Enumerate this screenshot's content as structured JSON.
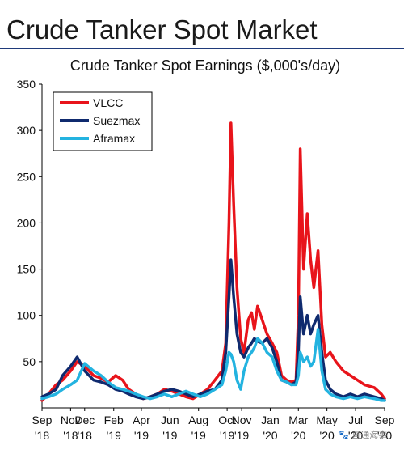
{
  "page": {
    "slide_title": "Crude Tanker Spot Market",
    "watermark": "🐾 直通海事"
  },
  "colors": {
    "VLCC": "#e8141b",
    "Suezmax": "#0f2a6e",
    "Aframax": "#23b3e0",
    "title_rule": "#1f3a7a"
  },
  "chart_data": {
    "type": "line",
    "title": "Crude Tanker Spot Earnings ($,000's/day)",
    "xlabel": "",
    "ylabel": "",
    "ylim": [
      0,
      350
    ],
    "yticks": [
      50,
      100,
      150,
      200,
      250,
      300,
      350
    ],
    "xlim": [
      "2018-09-01",
      "2020-09-01"
    ],
    "xticks": [
      {
        "x": "2018-09-01",
        "line1": "Sep",
        "line2": "'18"
      },
      {
        "x": "2018-11-01",
        "line1": "Nov",
        "line2": "'18"
      },
      {
        "x": "2018-12-01",
        "line1": "Dec",
        "line2": "'18"
      },
      {
        "x": "2019-02-01",
        "line1": "Feb",
        "line2": "'19"
      },
      {
        "x": "2019-04-01",
        "line1": "Apr",
        "line2": "'19"
      },
      {
        "x": "2019-06-01",
        "line1": "Jun",
        "line2": "'19"
      },
      {
        "x": "2019-08-01",
        "line1": "Aug",
        "line2": "'19"
      },
      {
        "x": "2019-10-01",
        "line1": "Oct",
        "line2": "'19"
      },
      {
        "x": "2019-11-01",
        "line1": "Nov",
        "line2": "'19"
      },
      {
        "x": "2020-01-01",
        "line1": "Jan",
        "line2": "'20"
      },
      {
        "x": "2020-03-01",
        "line1": "Mar",
        "line2": "'20"
      },
      {
        "x": "2020-05-01",
        "line1": "May",
        "line2": "'20"
      },
      {
        "x": "2020-07-01",
        "line1": "Jul",
        "line2": "'20"
      },
      {
        "x": "2020-09-01",
        "line1": "Sep",
        "line2": "'20"
      }
    ],
    "grid": false,
    "legend": "top-left",
    "series": [
      {
        "name": "VLCC",
        "points": [
          [
            "2018-09-01",
            8
          ],
          [
            "2018-09-15",
            15
          ],
          [
            "2018-10-01",
            25
          ],
          [
            "2018-10-15",
            30
          ],
          [
            "2018-11-01",
            40
          ],
          [
            "2018-11-15",
            50
          ],
          [
            "2018-12-01",
            45
          ],
          [
            "2018-12-20",
            35
          ],
          [
            "2019-01-05",
            32
          ],
          [
            "2019-01-20",
            28
          ],
          [
            "2019-02-05",
            35
          ],
          [
            "2019-02-20",
            30
          ],
          [
            "2019-03-05",
            20
          ],
          [
            "2019-03-20",
            15
          ],
          [
            "2019-04-05",
            10
          ],
          [
            "2019-04-20",
            12
          ],
          [
            "2019-05-05",
            15
          ],
          [
            "2019-05-20",
            20
          ],
          [
            "2019-06-05",
            18
          ],
          [
            "2019-06-20",
            15
          ],
          [
            "2019-07-05",
            12
          ],
          [
            "2019-07-20",
            10
          ],
          [
            "2019-08-05",
            15
          ],
          [
            "2019-08-20",
            20
          ],
          [
            "2019-09-05",
            30
          ],
          [
            "2019-09-20",
            40
          ],
          [
            "2019-09-28",
            70
          ],
          [
            "2019-10-05",
            200
          ],
          [
            "2019-10-09",
            308
          ],
          [
            "2019-10-15",
            220
          ],
          [
            "2019-10-22",
            130
          ],
          [
            "2019-10-30",
            75
          ],
          [
            "2019-11-06",
            60
          ],
          [
            "2019-11-15",
            95
          ],
          [
            "2019-11-22",
            103
          ],
          [
            "2019-11-28",
            85
          ],
          [
            "2019-12-05",
            110
          ],
          [
            "2019-12-15",
            95
          ],
          [
            "2019-12-25",
            80
          ],
          [
            "2020-01-05",
            70
          ],
          [
            "2020-01-15",
            60
          ],
          [
            "2020-01-25",
            35
          ],
          [
            "2020-02-05",
            30
          ],
          [
            "2020-02-15",
            28
          ],
          [
            "2020-02-25",
            30
          ],
          [
            "2020-03-01",
            100
          ],
          [
            "2020-03-05",
            280
          ],
          [
            "2020-03-12",
            150
          ],
          [
            "2020-03-20",
            210
          ],
          [
            "2020-03-27",
            160
          ],
          [
            "2020-04-03",
            130
          ],
          [
            "2020-04-12",
            170
          ],
          [
            "2020-04-20",
            90
          ],
          [
            "2020-04-28",
            55
          ],
          [
            "2020-05-08",
            60
          ],
          [
            "2020-05-20",
            50
          ],
          [
            "2020-06-05",
            40
          ],
          [
            "2020-06-20",
            35
          ],
          [
            "2020-07-05",
            30
          ],
          [
            "2020-07-20",
            25
          ],
          [
            "2020-08-10",
            22
          ],
          [
            "2020-08-25",
            15
          ],
          [
            "2020-09-01",
            10
          ]
        ]
      },
      {
        "name": "Suezmax",
        "points": [
          [
            "2018-09-01",
            12
          ],
          [
            "2018-09-15",
            15
          ],
          [
            "2018-10-01",
            20
          ],
          [
            "2018-10-15",
            35
          ],
          [
            "2018-11-01",
            45
          ],
          [
            "2018-11-15",
            55
          ],
          [
            "2018-12-01",
            40
          ],
          [
            "2018-12-20",
            30
          ],
          [
            "2019-01-05",
            28
          ],
          [
            "2019-01-20",
            25
          ],
          [
            "2019-02-05",
            20
          ],
          [
            "2019-02-20",
            18
          ],
          [
            "2019-03-05",
            15
          ],
          [
            "2019-03-20",
            12
          ],
          [
            "2019-04-05",
            10
          ],
          [
            "2019-04-20",
            12
          ],
          [
            "2019-05-05",
            15
          ],
          [
            "2019-05-20",
            18
          ],
          [
            "2019-06-05",
            20
          ],
          [
            "2019-06-20",
            18
          ],
          [
            "2019-07-05",
            15
          ],
          [
            "2019-07-20",
            12
          ],
          [
            "2019-08-05",
            15
          ],
          [
            "2019-08-20",
            18
          ],
          [
            "2019-09-05",
            20
          ],
          [
            "2019-09-20",
            30
          ],
          [
            "2019-09-28",
            60
          ],
          [
            "2019-10-05",
            120
          ],
          [
            "2019-10-09",
            160
          ],
          [
            "2019-10-15",
            120
          ],
          [
            "2019-10-22",
            80
          ],
          [
            "2019-10-30",
            60
          ],
          [
            "2019-11-06",
            55
          ],
          [
            "2019-11-15",
            65
          ],
          [
            "2019-11-22",
            70
          ],
          [
            "2019-11-28",
            75
          ],
          [
            "2019-12-05",
            72
          ],
          [
            "2019-12-15",
            70
          ],
          [
            "2019-12-25",
            75
          ],
          [
            "2020-01-05",
            65
          ],
          [
            "2020-01-15",
            50
          ],
          [
            "2020-01-25",
            30
          ],
          [
            "2020-02-05",
            28
          ],
          [
            "2020-02-15",
            25
          ],
          [
            "2020-02-25",
            28
          ],
          [
            "2020-03-01",
            60
          ],
          [
            "2020-03-05",
            120
          ],
          [
            "2020-03-12",
            80
          ],
          [
            "2020-03-20",
            100
          ],
          [
            "2020-03-27",
            80
          ],
          [
            "2020-04-03",
            90
          ],
          [
            "2020-04-12",
            100
          ],
          [
            "2020-04-20",
            60
          ],
          [
            "2020-04-28",
            30
          ],
          [
            "2020-05-08",
            20
          ],
          [
            "2020-05-20",
            15
          ],
          [
            "2020-06-05",
            12
          ],
          [
            "2020-06-20",
            15
          ],
          [
            "2020-07-05",
            12
          ],
          [
            "2020-07-20",
            15
          ],
          [
            "2020-08-10",
            12
          ],
          [
            "2020-08-25",
            10
          ],
          [
            "2020-09-01",
            8
          ]
        ]
      },
      {
        "name": "Aframax",
        "points": [
          [
            "2018-09-01",
            10
          ],
          [
            "2018-09-15",
            12
          ],
          [
            "2018-10-01",
            15
          ],
          [
            "2018-10-15",
            20
          ],
          [
            "2018-11-01",
            25
          ],
          [
            "2018-11-15",
            30
          ],
          [
            "2018-12-01",
            48
          ],
          [
            "2018-12-20",
            40
          ],
          [
            "2019-01-05",
            35
          ],
          [
            "2019-01-20",
            28
          ],
          [
            "2019-02-05",
            22
          ],
          [
            "2019-02-20",
            20
          ],
          [
            "2019-03-05",
            18
          ],
          [
            "2019-03-20",
            15
          ],
          [
            "2019-04-05",
            12
          ],
          [
            "2019-04-20",
            10
          ],
          [
            "2019-05-05",
            12
          ],
          [
            "2019-05-20",
            15
          ],
          [
            "2019-06-05",
            12
          ],
          [
            "2019-06-20",
            15
          ],
          [
            "2019-07-05",
            18
          ],
          [
            "2019-07-20",
            15
          ],
          [
            "2019-08-05",
            12
          ],
          [
            "2019-08-20",
            15
          ],
          [
            "2019-09-05",
            20
          ],
          [
            "2019-09-20",
            25
          ],
          [
            "2019-09-28",
            40
          ],
          [
            "2019-10-05",
            60
          ],
          [
            "2019-10-09",
            58
          ],
          [
            "2019-10-15",
            50
          ],
          [
            "2019-10-22",
            30
          ],
          [
            "2019-10-30",
            20
          ],
          [
            "2019-11-06",
            40
          ],
          [
            "2019-11-15",
            55
          ],
          [
            "2019-11-22",
            60
          ],
          [
            "2019-11-28",
            65
          ],
          [
            "2019-12-05",
            75
          ],
          [
            "2019-12-15",
            70
          ],
          [
            "2019-12-25",
            60
          ],
          [
            "2020-01-05",
            55
          ],
          [
            "2020-01-15",
            40
          ],
          [
            "2020-01-25",
            30
          ],
          [
            "2020-02-05",
            28
          ],
          [
            "2020-02-15",
            25
          ],
          [
            "2020-02-25",
            25
          ],
          [
            "2020-03-01",
            35
          ],
          [
            "2020-03-05",
            60
          ],
          [
            "2020-03-12",
            50
          ],
          [
            "2020-03-20",
            55
          ],
          [
            "2020-03-27",
            45
          ],
          [
            "2020-04-03",
            50
          ],
          [
            "2020-04-12",
            85
          ],
          [
            "2020-04-20",
            40
          ],
          [
            "2020-04-28",
            20
          ],
          [
            "2020-05-08",
            15
          ],
          [
            "2020-05-20",
            12
          ],
          [
            "2020-06-05",
            10
          ],
          [
            "2020-06-20",
            12
          ],
          [
            "2020-07-05",
            10
          ],
          [
            "2020-07-20",
            12
          ],
          [
            "2020-08-10",
            10
          ],
          [
            "2020-08-25",
            8
          ],
          [
            "2020-09-01",
            8
          ]
        ]
      }
    ]
  }
}
